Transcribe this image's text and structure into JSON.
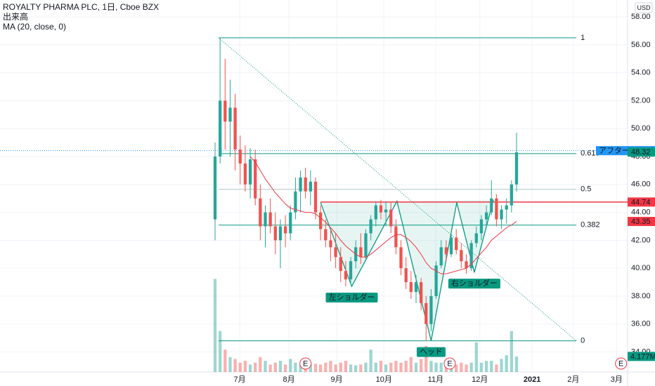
{
  "chart_data": {
    "type": "candlestick",
    "title": "ROYALTY PHARMA PLC, 1日, Cboe BZX",
    "volume_title": "出来高",
    "ma_title": "MA (20, close, 0)",
    "currency": "USD",
    "up_color": "#26a69a",
    "down_color": "#ef5350",
    "ma_color": "#f23645",
    "grid": true,
    "ylim": [
      32.57,
      59.21
    ],
    "xlim": [
      -42.8,
      82.1
    ],
    "vlim": [
      0,
      100
    ],
    "yticks": [
      {
        "value": 34,
        "label": "34.00"
      },
      {
        "value": 36,
        "label": "36.00"
      },
      {
        "value": 38,
        "label": "38.00"
      },
      {
        "value": 40,
        "label": "40.00"
      },
      {
        "value": 42,
        "label": "42.00"
      },
      {
        "value": 44,
        "label": "44.00"
      },
      {
        "value": 46,
        "label": "46.00"
      },
      {
        "value": 48,
        "label": "48.00"
      },
      {
        "value": 50,
        "label": "50.00"
      },
      {
        "value": 52,
        "label": "52.00"
      },
      {
        "value": 54,
        "label": "54.00"
      },
      {
        "value": 56,
        "label": "56.00"
      },
      {
        "value": 58,
        "label": "58.00"
      }
    ],
    "xticks": [
      {
        "value": 4.9,
        "label": "7月"
      },
      {
        "value": 14.7,
        "label": "8月"
      },
      {
        "value": 24.2,
        "label": "9月"
      },
      {
        "value": 33.6,
        "label": "10月"
      },
      {
        "value": 43.9,
        "label": "11月"
      },
      {
        "value": 52.7,
        "label": "12月"
      },
      {
        "value": 63.1,
        "label": "2021"
      },
      {
        "value": 71.3,
        "label": "2月"
      },
      {
        "value": 79.9,
        "label": "3月"
      }
    ],
    "open": [
      43.5,
      48.0,
      52.0,
      50.5,
      51.5,
      48.5,
      47.5,
      46.0,
      47.8,
      45.0,
      43.0,
      44.0,
      43.0,
      42.0,
      43.0,
      42.5,
      44.0,
      45.5,
      46.5,
      45.5,
      46.2,
      44.0,
      42.8,
      42.0,
      41.5,
      40.8,
      39.8,
      39.2,
      40.5,
      41.5,
      40.8,
      42.5,
      43.5,
      44.5,
      44.0,
      44.2,
      43.0,
      41.5,
      40.0,
      39.0,
      38.3,
      39.0,
      37.5,
      36.0,
      38.0,
      40.2,
      41.5,
      41.0,
      42.2,
      41.3,
      40.5,
      40.0,
      41.8,
      42.5,
      43.5,
      44.0,
      45.0,
      43.5,
      44.2,
      44.5,
      46.0
    ],
    "high": [
      49.0,
      56.5,
      55.0,
      53.5,
      52.5,
      49.5,
      48.8,
      48.6,
      48.5,
      46.0,
      44.5,
      45.0,
      44.0,
      43.5,
      43.8,
      44.5,
      46.5,
      47.0,
      47.2,
      47.0,
      46.5,
      44.5,
      43.5,
      42.8,
      42.5,
      41.5,
      40.5,
      40.8,
      42.0,
      42.5,
      42.8,
      43.8,
      44.8,
      44.9,
      44.8,
      44.7,
      43.5,
      42.0,
      40.8,
      39.8,
      39.5,
      39.3,
      38.0,
      38.5,
      40.5,
      42.0,
      42.0,
      42.5,
      42.8,
      41.8,
      41.0,
      42.0,
      43.0,
      43.8,
      44.5,
      46.3,
      45.3,
      44.5,
      45.0,
      46.3,
      49.7
    ],
    "low": [
      42.0,
      47.5,
      48.5,
      48.0,
      47.0,
      46.0,
      45.5,
      45.0,
      44.5,
      42.0,
      41.5,
      42.5,
      41.0,
      40.0,
      41.5,
      42.0,
      43.5,
      44.0,
      45.0,
      44.5,
      43.5,
      42.0,
      41.5,
      40.5,
      40.0,
      39.0,
      38.7,
      38.8,
      40.0,
      40.3,
      40.5,
      42.0,
      43.0,
      43.5,
      43.0,
      42.5,
      41.0,
      39.5,
      38.5,
      37.8,
      37.5,
      37.0,
      34.8,
      35.5,
      37.8,
      40.0,
      40.5,
      40.8,
      41.0,
      40.0,
      39.6,
      39.8,
      41.5,
      42.0,
      43.0,
      43.8,
      43.0,
      42.8,
      43.2,
      44.0,
      45.5
    ],
    "close": [
      48.0,
      52.0,
      50.5,
      51.5,
      48.5,
      47.5,
      46.0,
      47.8,
      45.0,
      43.0,
      44.0,
      43.0,
      42.0,
      43.0,
      42.5,
      44.0,
      45.5,
      46.5,
      45.5,
      46.2,
      44.0,
      42.8,
      42.0,
      41.5,
      40.8,
      39.8,
      39.2,
      40.5,
      41.5,
      40.8,
      42.5,
      43.5,
      44.5,
      44.0,
      44.2,
      43.0,
      41.5,
      40.0,
      39.0,
      38.3,
      39.0,
      37.5,
      36.0,
      38.0,
      40.2,
      41.5,
      41.0,
      42.2,
      41.3,
      40.5,
      40.0,
      41.8,
      42.5,
      43.5,
      44.0,
      45.0,
      43.5,
      44.2,
      44.5,
      46.0,
      48.3
    ],
    "volume": [
      25,
      11,
      6,
      4,
      3.5,
      2.5,
      3,
      2,
      2.5,
      4,
      3,
      2,
      2.5,
      3,
      2,
      3.5,
      2.5,
      2,
      1.8,
      2,
      2.2,
      2,
      2.5,
      3,
      2,
      2.5,
      3,
      2,
      1.8,
      2,
      2.5,
      6,
      2.5,
      3,
      2,
      2.5,
      3,
      2.5,
      3,
      4,
      2.5,
      3.5,
      7,
      3,
      2.5,
      2.5,
      3,
      2,
      2,
      2.5,
      2,
      2.5,
      8,
      2.5,
      3,
      3,
      2,
      3.5,
      4.5,
      11,
      4.177
    ],
    "ma": [
      null,
      null,
      null,
      null,
      null,
      null,
      null,
      48.0,
      47.6,
      47.0,
      46.4,
      45.9,
      45.4,
      45.0,
      44.6,
      44.3,
      44.2,
      44.1,
      44.0,
      44.0,
      43.9,
      43.6,
      43.3,
      42.9,
      42.5,
      42.0,
      41.6,
      41.3,
      41.0,
      40.8,
      40.8,
      41.0,
      41.3,
      41.6,
      41.9,
      42.2,
      42.4,
      42.4,
      42.2,
      41.9,
      41.5,
      41.0,
      40.4,
      40.0,
      39.8,
      39.6,
      39.6,
      39.7,
      39.8,
      39.9,
      40.0,
      40.3,
      40.7,
      41.1,
      41.5,
      42.0,
      42.3,
      42.6,
      42.9,
      43.1,
      43.35
    ],
    "fib": {
      "start_x": 0.7,
      "end_x": 71.9,
      "start": 56.5,
      "end": 34.8,
      "levels": [
        1,
        0.618,
        0.5,
        0.382,
        0
      ],
      "color": "#089981",
      "mid_color": "#b2c7c4"
    },
    "pattern": {
      "x": [
        21.0,
        27.2,
        36.2,
        43.0,
        48.1,
        51.6,
        55.4
      ],
      "y": [
        44.7,
        38.7,
        44.8,
        34.8,
        44.7,
        39.7,
        44.9
      ],
      "labels": [
        {
          "point": 1,
          "text": "左ショルダー"
        },
        {
          "point": 3,
          "text": "ヘッド"
        },
        {
          "point": 5,
          "text": "右ショルダー"
        }
      ],
      "color": "#089981"
    },
    "price_tags": [
      {
        "label": "アフター",
        "value": 48.42,
        "color": "#2196f3",
        "line": "dotted"
      },
      {
        "value": 48.32,
        "color": "#089981",
        "line": "none"
      },
      {
        "value": 44.74,
        "color": "#f23645",
        "line": "solid"
      },
      {
        "value": 43.35,
        "color": "#f23645",
        "line": "none"
      }
    ],
    "volume_tag": {
      "value": 4.177,
      "label": "4.177M",
      "color": "#089981"
    },
    "events": {
      "x": [
        18.0,
        46.7,
        80.8
      ],
      "label": "E"
    }
  }
}
